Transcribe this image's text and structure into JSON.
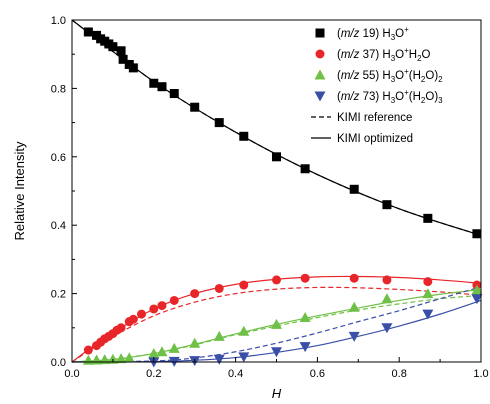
{
  "chart_data": {
    "type": "scatter",
    "xlabel": "H",
    "ylabel": "Relative Intensity",
    "xlim": [
      0,
      1.0
    ],
    "ylim": [
      0,
      1.0
    ],
    "xticks": [
      "0.0",
      "0.2",
      "0.4",
      "0.6",
      "0.8",
      "1.0"
    ],
    "yticks": [
      "0.0",
      "0.2",
      "0.4",
      "0.6",
      "0.8",
      "1.0"
    ],
    "grid": false,
    "legend_position": "top-right",
    "series": [
      {
        "name": "(m/z 19) H3O+",
        "legend": {
          "prefix": "(",
          "italic": "m/z",
          "rest": " 19) H",
          "sub1": "3",
          "mid1": "O",
          "sup1": "+",
          "tail": ""
        },
        "color": "#000000",
        "marker": "square",
        "points": [
          [
            0.04,
            0.965
          ],
          [
            0.06,
            0.955
          ],
          [
            0.07,
            0.945
          ],
          [
            0.08,
            0.938
          ],
          [
            0.09,
            0.93
          ],
          [
            0.1,
            0.922
          ],
          [
            0.12,
            0.91
          ],
          [
            0.125,
            0.885
          ],
          [
            0.14,
            0.87
          ],
          [
            0.15,
            0.86
          ],
          [
            0.2,
            0.815
          ],
          [
            0.22,
            0.805
          ],
          [
            0.25,
            0.785
          ],
          [
            0.3,
            0.745
          ],
          [
            0.36,
            0.7
          ],
          [
            0.42,
            0.66
          ],
          [
            0.5,
            0.6
          ],
          [
            0.57,
            0.565
          ],
          [
            0.69,
            0.505
          ],
          [
            0.77,
            0.46
          ],
          [
            0.87,
            0.42
          ],
          [
            0.99,
            0.375
          ]
        ],
        "reference_curve": [
          [
            0,
            1.0
          ],
          [
            0.2,
            0.82
          ],
          [
            0.4,
            0.672
          ],
          [
            0.6,
            0.548
          ],
          [
            0.8,
            0.448
          ],
          [
            1.0,
            0.37
          ]
        ],
        "optimized_curve": [
          [
            0,
            1.0
          ],
          [
            0.2,
            0.82
          ],
          [
            0.4,
            0.672
          ],
          [
            0.6,
            0.548
          ],
          [
            0.8,
            0.448
          ],
          [
            1.0,
            0.37
          ]
        ]
      },
      {
        "name": "(m/z 37) H3O+H2O",
        "legend": {
          "prefix": "(",
          "italic": "m/z",
          "rest": " 37) H",
          "sub1": "3",
          "mid1": "O",
          "sup1": "+",
          "tail": "H",
          "sub2": "2",
          "tail2": "O"
        },
        "color": "#e8262a",
        "marker": "circle",
        "points": [
          [
            0.04,
            0.035
          ],
          [
            0.06,
            0.048
          ],
          [
            0.07,
            0.058
          ],
          [
            0.08,
            0.068
          ],
          [
            0.09,
            0.075
          ],
          [
            0.1,
            0.083
          ],
          [
            0.11,
            0.093
          ],
          [
            0.12,
            0.1
          ],
          [
            0.14,
            0.118
          ],
          [
            0.15,
            0.125
          ],
          [
            0.17,
            0.14
          ],
          [
            0.2,
            0.155
          ],
          [
            0.22,
            0.165
          ],
          [
            0.25,
            0.18
          ],
          [
            0.3,
            0.2
          ],
          [
            0.36,
            0.215
          ],
          [
            0.42,
            0.225
          ],
          [
            0.5,
            0.24
          ],
          [
            0.57,
            0.245
          ],
          [
            0.69,
            0.245
          ],
          [
            0.77,
            0.24
          ],
          [
            0.87,
            0.235
          ],
          [
            0.99,
            0.225
          ]
        ],
        "reference_curve": [
          [
            0,
            0
          ],
          [
            0.05,
            0.04
          ],
          [
            0.1,
            0.075
          ],
          [
            0.2,
            0.135
          ],
          [
            0.3,
            0.175
          ],
          [
            0.4,
            0.2
          ],
          [
            0.5,
            0.213
          ],
          [
            0.6,
            0.218
          ],
          [
            0.7,
            0.217
          ],
          [
            0.8,
            0.212
          ],
          [
            0.9,
            0.205
          ],
          [
            1.0,
            0.195
          ]
        ],
        "optimized_curve": [
          [
            0,
            0
          ],
          [
            0.05,
            0.045
          ],
          [
            0.1,
            0.085
          ],
          [
            0.2,
            0.155
          ],
          [
            0.3,
            0.2
          ],
          [
            0.4,
            0.227
          ],
          [
            0.5,
            0.242
          ],
          [
            0.6,
            0.249
          ],
          [
            0.7,
            0.25
          ],
          [
            0.8,
            0.247
          ],
          [
            0.9,
            0.24
          ],
          [
            1.0,
            0.23
          ]
        ]
      },
      {
        "name": "(m/z 55) H3O+(H2O)2",
        "legend": {
          "prefix": "(",
          "italic": "m/z",
          "rest": " 55) H",
          "sub1": "3",
          "mid1": "O",
          "sup1": "+",
          "tail": "(H",
          "sub2": "2",
          "tail2": "O)",
          "sub3": "2"
        },
        "color": "#6ec046",
        "marker": "triangle-up",
        "points": [
          [
            0.04,
            0.005
          ],
          [
            0.06,
            0.006
          ],
          [
            0.08,
            0.007
          ],
          [
            0.1,
            0.008
          ],
          [
            0.12,
            0.01
          ],
          [
            0.14,
            0.012
          ],
          [
            0.2,
            0.025
          ],
          [
            0.22,
            0.03
          ],
          [
            0.25,
            0.04
          ],
          [
            0.3,
            0.055
          ],
          [
            0.36,
            0.075
          ],
          [
            0.42,
            0.09
          ],
          [
            0.5,
            0.11
          ],
          [
            0.57,
            0.13
          ],
          [
            0.69,
            0.16
          ],
          [
            0.77,
            0.185
          ],
          [
            0.87,
            0.2
          ],
          [
            0.99,
            0.21
          ]
        ],
        "reference_curve": [
          [
            0,
            0
          ],
          [
            0.1,
            0.008
          ],
          [
            0.2,
            0.025
          ],
          [
            0.3,
            0.05
          ],
          [
            0.4,
            0.08
          ],
          [
            0.5,
            0.105
          ],
          [
            0.6,
            0.13
          ],
          [
            0.7,
            0.152
          ],
          [
            0.8,
            0.17
          ],
          [
            0.9,
            0.185
          ],
          [
            1.0,
            0.195
          ]
        ],
        "optimized_curve": [
          [
            0,
            0
          ],
          [
            0.1,
            0.007
          ],
          [
            0.2,
            0.025
          ],
          [
            0.3,
            0.052
          ],
          [
            0.4,
            0.082
          ],
          [
            0.5,
            0.11
          ],
          [
            0.6,
            0.135
          ],
          [
            0.7,
            0.158
          ],
          [
            0.8,
            0.18
          ],
          [
            0.9,
            0.198
          ],
          [
            1.0,
            0.212
          ]
        ]
      },
      {
        "name": "(m/z 73) H3O+(H2O)3",
        "legend": {
          "prefix": "(",
          "italic": "m/z",
          "rest": " 73) H",
          "sub1": "3",
          "mid1": "O",
          "sup1": "+",
          "tail": "(H",
          "sub2": "2",
          "tail2": "O)",
          "sub3": "3"
        },
        "color": "#3a4fa8",
        "marker": "triangle-down",
        "points": [
          [
            0.2,
            0.0
          ],
          [
            0.25,
            0.002
          ],
          [
            0.3,
            0.004
          ],
          [
            0.36,
            0.008
          ],
          [
            0.42,
            0.015
          ],
          [
            0.5,
            0.03
          ],
          [
            0.57,
            0.045
          ],
          [
            0.69,
            0.075
          ],
          [
            0.77,
            0.1
          ],
          [
            0.87,
            0.14
          ],
          [
            0.99,
            0.185
          ]
        ],
        "reference_curve": [
          [
            0,
            0
          ],
          [
            0.2,
            0.003
          ],
          [
            0.3,
            0.012
          ],
          [
            0.4,
            0.03
          ],
          [
            0.5,
            0.055
          ],
          [
            0.6,
            0.085
          ],
          [
            0.7,
            0.118
          ],
          [
            0.8,
            0.15
          ],
          [
            0.9,
            0.185
          ],
          [
            1.0,
            0.22
          ]
        ],
        "optimized_curve": [
          [
            0,
            0
          ],
          [
            0.2,
            0.001
          ],
          [
            0.3,
            0.005
          ],
          [
            0.4,
            0.013
          ],
          [
            0.5,
            0.028
          ],
          [
            0.6,
            0.048
          ],
          [
            0.7,
            0.075
          ],
          [
            0.8,
            0.105
          ],
          [
            0.9,
            0.14
          ],
          [
            1.0,
            0.18
          ]
        ]
      }
    ],
    "line_legend": [
      {
        "name": "KIMI reference",
        "style": "dashed"
      },
      {
        "name": "KIMI optimized",
        "style": "solid"
      }
    ]
  }
}
